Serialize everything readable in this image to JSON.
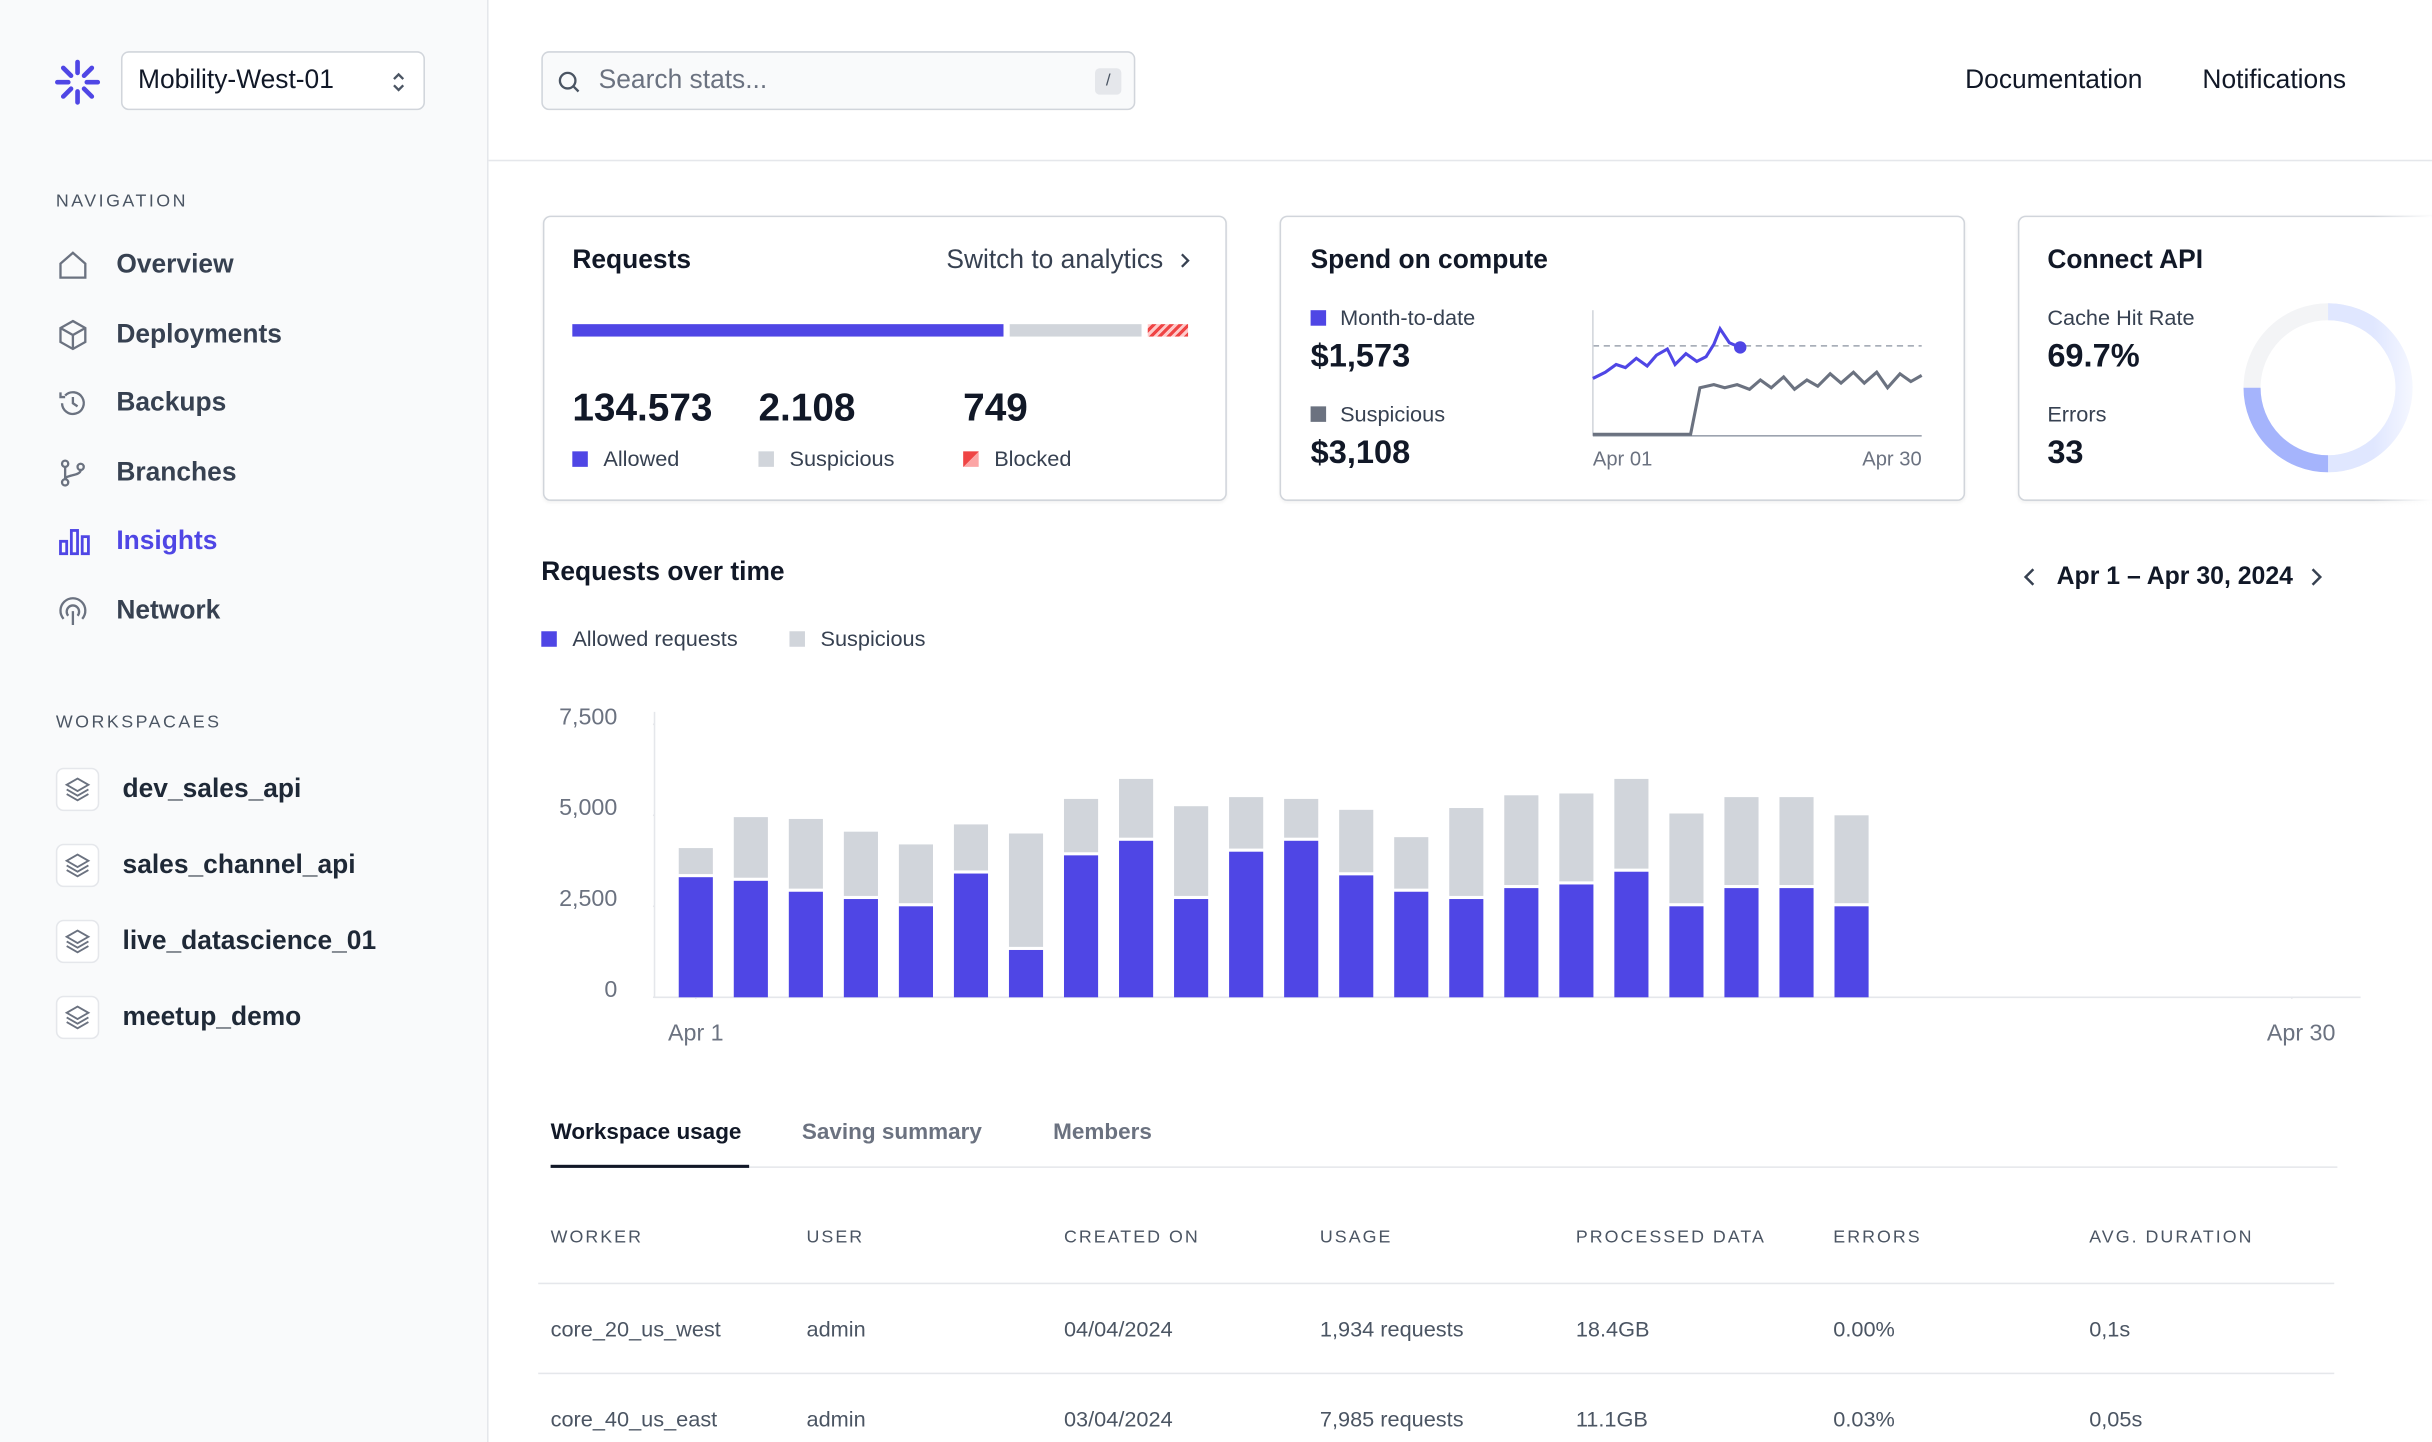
{
  "sidebar": {
    "workspace_selector": "Mobility-West-01",
    "navigation_heading": "NAVIGATION",
    "navigation": [
      "Overview",
      "Deployments",
      "Backups",
      "Branches",
      "Insights",
      "Network"
    ],
    "workspaces_heading": "WORKSPACAES",
    "workspaces": [
      "dev_sales_api",
      "sales_channel_api",
      "live_datascience_01",
      "meetup_demo"
    ]
  },
  "topbar": {
    "search_placeholder": "Search stats...",
    "search_shortcut": "/",
    "links": [
      "Documentation",
      "Notifications"
    ]
  },
  "cards": {
    "requests": {
      "title": "Requests",
      "action": "Switch to analytics",
      "stats": [
        {
          "value": "134.573",
          "label": "Allowed"
        },
        {
          "value": "2.108",
          "label": "Suspicious"
        },
        {
          "value": "749",
          "label": "Blocked"
        }
      ]
    },
    "spend": {
      "title": "Spend on compute",
      "items": [
        {
          "label": "Month-to-date",
          "value": "$1,573"
        },
        {
          "label": "Suspicious",
          "value": "$3,108"
        }
      ],
      "axis_start": "Apr 01",
      "axis_end": "Apr 30"
    },
    "connect_api": {
      "title": "Connect API",
      "items": [
        {
          "label": "Cache Hit Rate",
          "value": "69.7%"
        },
        {
          "label": "Errors",
          "value": "33"
        }
      ]
    }
  },
  "requests_chart": {
    "type": "bar",
    "stacked": true,
    "title": "Requests over time",
    "date_range": "Apr 1 – Apr 30, 2024",
    "x": [
      1,
      2,
      3,
      4,
      5,
      6,
      7,
      8,
      9,
      10,
      11,
      12,
      13,
      14,
      15,
      16,
      17,
      18,
      19,
      20,
      21,
      22
    ],
    "series": [
      {
        "name": "Allowed requests",
        "color": "#4f46e5",
        "values": [
          3300,
          3200,
          2900,
          2700,
          2500,
          3400,
          1300,
          3900,
          4300,
          2700,
          4000,
          4300,
          3350,
          2900,
          2700,
          3000,
          3100,
          3450,
          2500,
          3000,
          3000,
          2500
        ]
      },
      {
        "name": "Suspicious",
        "color": "#d1d5db",
        "values": [
          800,
          1750,
          2000,
          1850,
          1700,
          1350,
          3200,
          1550,
          1700,
          2550,
          1500,
          1150,
          1800,
          1500,
          2500,
          2550,
          2500,
          2550,
          2550,
          2500,
          2500,
          2500
        ]
      }
    ],
    "ylim": [
      0,
      7500
    ],
    "yticks": [
      0,
      {
        "value": 2500,
        "label": "2,500"
      },
      {
        "value": 5000,
        "label": "5,000"
      },
      {
        "value": 7500,
        "label": "7,500"
      }
    ],
    "xlim": [
      0.25,
      31.25
    ],
    "xticks": [
      {
        "value": 1,
        "label": "Apr 1"
      },
      {
        "value": 30,
        "label": "Apr 30"
      }
    ]
  },
  "tabs": [
    "Workspace usage",
    "Saving summary",
    "Members"
  ],
  "table": {
    "columns": [
      "WORKER",
      "USER",
      "CREATED ON",
      "USAGE",
      "PROCESSED DATA",
      "ERRORS",
      "AVG. DURATION"
    ],
    "rows": [
      [
        "core_20_us_west",
        "admin",
        "04/04/2024",
        "1,934 requests",
        "18.4GB",
        "0.00%",
        "0,1s"
      ],
      [
        "core_40_us_east",
        "admin",
        "03/04/2024",
        "7,985 requests",
        "11.1GB",
        "0.03%",
        "0,05s"
      ]
    ]
  }
}
